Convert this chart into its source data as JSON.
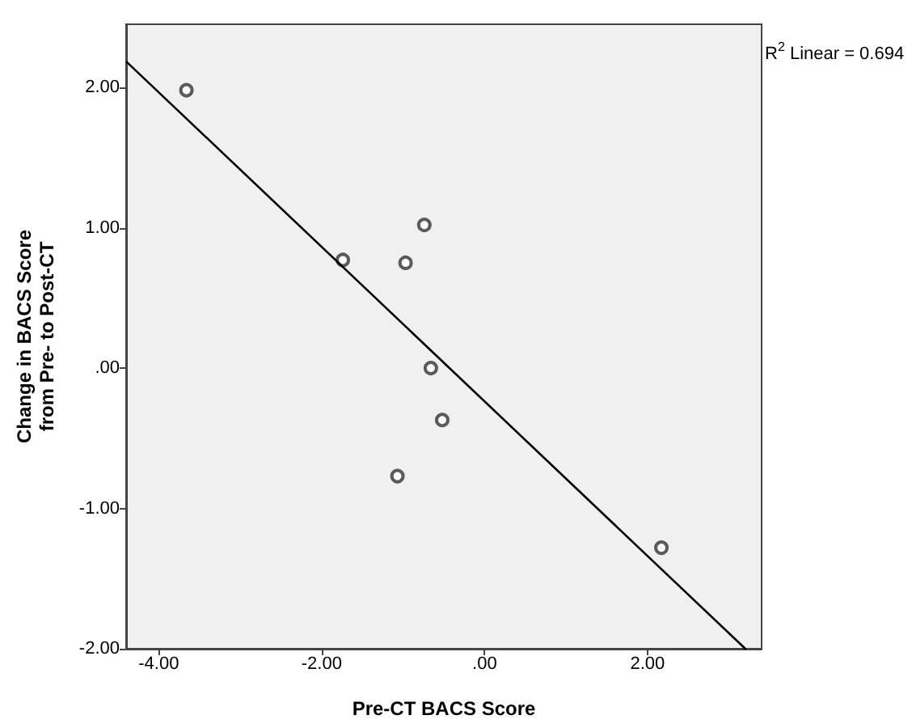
{
  "chart_data": {
    "type": "scatter",
    "xlabel": "Pre-CT BACS Score",
    "ylabel": "Change in BACS Score from Pre- to Post-CT",
    "annotations": [
      "R$^{2}$ Linear = 0.694"
    ],
    "series": [
      {
        "color": "#333333",
        "x": [
          -3.66,
          -1.74,
          -0.74,
          -0.97,
          -0.66,
          -0.52,
          -1.07,
          2.17
        ],
        "values": [
          1.98,
          0.77,
          1.02,
          0.75,
          0.0,
          -0.37,
          -0.77,
          -1.28
        ]
      },
      {
        "type": "line",
        "color": "#000000",
        "x": [
          -4.39,
          3.2
        ],
        "values": [
          2.18,
          -2.0
        ],
        "marker": "none"
      }
    ],
    "xlim": [
      -4.4,
      3.4
    ],
    "ylim": [
      -2.0,
      2.45
    ],
    "xticks": [
      {
        "value": -4,
        "label": "-4.00"
      },
      {
        "value": -2,
        "label": "-2.00"
      },
      {
        "value": 0,
        "label": ".00"
      },
      {
        "value": 2,
        "label": "2.00"
      }
    ],
    "yticks": [
      {
        "value": -2,
        "label": "-2.00"
      },
      {
        "value": -1,
        "label": "-1.00"
      },
      {
        "value": 0,
        "label": ".00"
      },
      {
        "value": 1,
        "label": "1.00"
      },
      {
        "value": 2,
        "label": "2.00"
      }
    ],
    "grid": false,
    "marker": "circle"
  }
}
